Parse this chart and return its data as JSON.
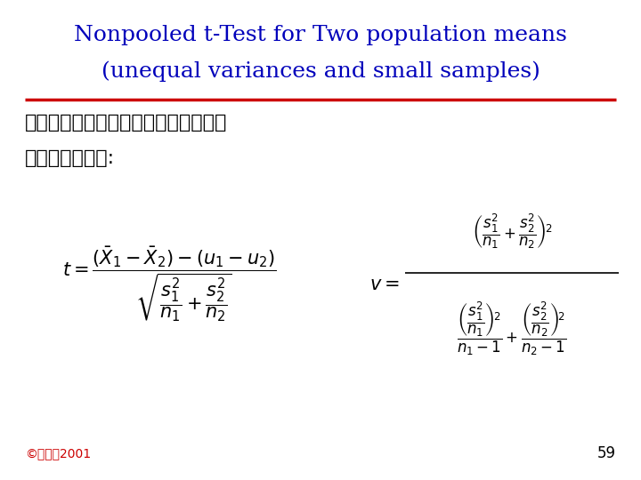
{
  "title_line1": "Nonpooled t-Test for Two population means",
  "title_line2": "(unequal variances and small samples)",
  "title_color": "#0000BB",
  "separator_color": "#CC0000",
  "chinese_text_line1": "如果兩母體的變異數為未知且不同，且",
  "chinese_text_line2": "樣本數很小，則:",
  "footer_text": "©蘇國賢2001",
  "footer_color": "#CC0000",
  "page_number": "59",
  "bg_color": "#FFFFFF"
}
